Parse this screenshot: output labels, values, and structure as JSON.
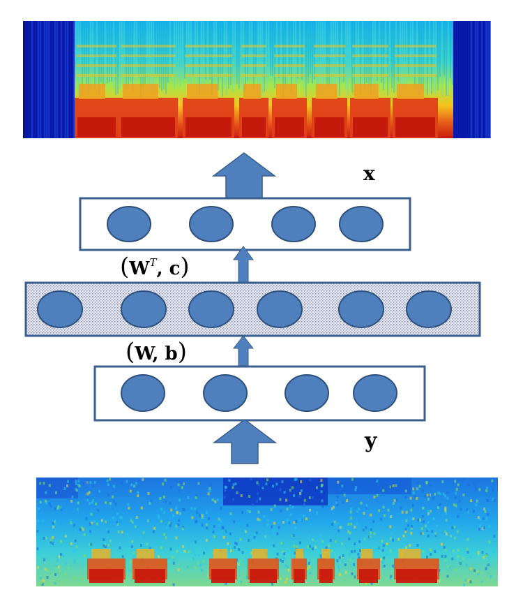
{
  "labels": {
    "x": "x",
    "y": "y",
    "decoder_params": {
      "open": "(",
      "w": "W",
      "sup": "T",
      "rest": ", c",
      "close": ")"
    },
    "encoder_params": {
      "open": "(",
      "w": "W",
      "rest": ", b",
      "close": ")"
    }
  },
  "layers": [
    {
      "name": "output-layer",
      "units": 4
    },
    {
      "name": "hidden-layer",
      "units": 6
    },
    {
      "name": "input-layer",
      "units": 4
    }
  ],
  "colors": {
    "unit_fill": "#4f80bd",
    "unit_stroke": "#2c4f7c",
    "arrow_fill": "#4f80bd",
    "arrow_stroke": "#385d8a",
    "layer_stroke": "#3a5f8f",
    "hidden_fill": "#dcdee8",
    "spec_low": "#0a1fb4",
    "spec_mid": "#27c2ea",
    "spec_high": "#d62a10"
  }
}
